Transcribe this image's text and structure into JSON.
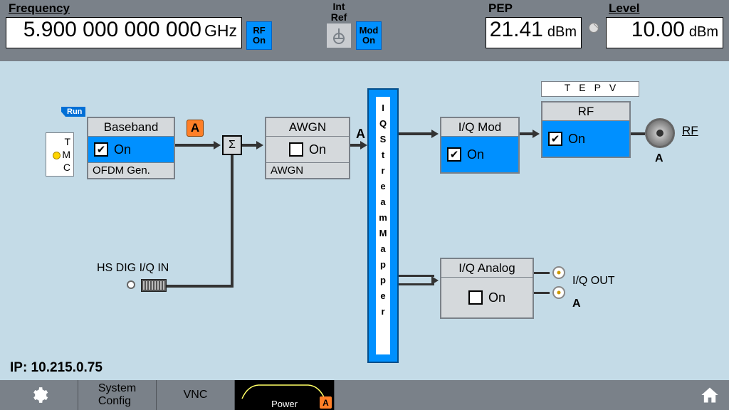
{
  "colors": {
    "topbar": "#7a8189",
    "main_bg": "#c4dbe7",
    "accent_blue": "#0090ff",
    "block_gray": "#d5d9dc",
    "badge_orange": "#ff7f27",
    "wire": "#333333"
  },
  "top": {
    "frequency": {
      "label": "Frequency",
      "value": "5.900 000 000 000",
      "unit": "GHz"
    },
    "rf_pill": {
      "line1": "RF",
      "line2": "On"
    },
    "ref": {
      "line1": "Int",
      "line2": "Ref"
    },
    "mod_pill": {
      "line1": "Mod",
      "line2": "On"
    },
    "pep": {
      "label": "PEP",
      "value": "21.41",
      "unit": "dBm"
    },
    "level": {
      "label": "Level",
      "value": "10.00",
      "unit": "dBm"
    }
  },
  "diagram": {
    "run_tag": "Run",
    "tmc": {
      "T": "T",
      "M": "M",
      "C": "C"
    },
    "baseband": {
      "title": "Baseband",
      "state": "On",
      "checked": true,
      "sub": "OFDM Gen."
    },
    "a_badge": "A",
    "sigma": "Σ",
    "awgn": {
      "title": "AWGN",
      "state": "On",
      "checked": false,
      "sub": "AWGN",
      "out_label": "A"
    },
    "mapper_chars": [
      "I",
      "Q",
      "S",
      "t",
      "r",
      "e",
      "a",
      "m",
      "M",
      "a",
      "p",
      "p",
      "e",
      "r"
    ],
    "iqmod": {
      "title": "I/Q Mod",
      "state": "On",
      "checked": true
    },
    "rf": {
      "title": "RF",
      "state": "On",
      "checked": true
    },
    "tepv": "TEPV",
    "rf_out_label": "RF",
    "rf_out_sub": "A",
    "iqanalog": {
      "title": "I/Q Analog",
      "state": "On",
      "checked": false
    },
    "iq_out_label": "I/Q OUT",
    "iq_out_sub": "A",
    "hs_dig_label": "HS DIG I/Q IN",
    "ip": "IP: 10.215.0.75"
  },
  "bottom": {
    "system_config": "System\nConfig",
    "vnc": "VNC",
    "power": "Power",
    "power_a": "A"
  }
}
